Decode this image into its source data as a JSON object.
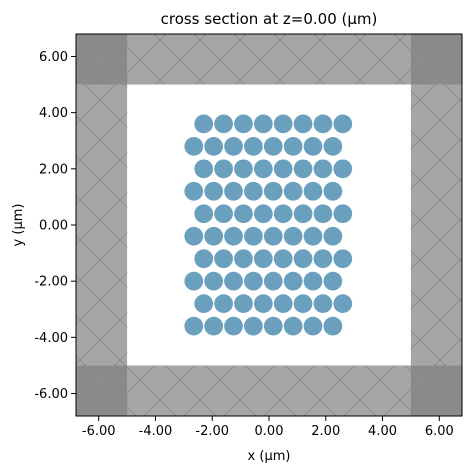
{
  "chart_data": {
    "type": "scatter",
    "title": "cross section at z=0.00 (μm)",
    "xlabel": "x (μm)",
    "ylabel": "y (μm)",
    "xlim": [
      -6.8,
      6.8
    ],
    "ylim": [
      -6.8,
      6.8
    ],
    "xticks": [
      -6,
      -4,
      -2,
      0,
      2,
      4,
      6
    ],
    "yticks": [
      -6,
      -4,
      -2,
      0,
      2,
      4,
      6
    ],
    "xtick_labels": [
      "-6.00",
      "-4.00",
      "-2.00",
      "0.00",
      "2.00",
      "4.00",
      "6.00"
    ],
    "ytick_labels": [
      "-6.00",
      "-4.00",
      "-2.00",
      "0.00",
      "2.00",
      "4.00",
      "6.00"
    ],
    "grid": false,
    "pml_boundary": 5.0,
    "background_region": {
      "x": [
        -5,
        5
      ],
      "y": [
        -5,
        5
      ],
      "color": "#ffffff"
    },
    "pml_color": "#a6a6a6",
    "pml_corner_color": "#8a8a8a",
    "hatch_color": "#8c8c8c",
    "cylinder_color": "#6a9fbd",
    "cylinder_radius": 0.33,
    "rows": [
      {
        "y": 3.6,
        "x": [
          -2.3,
          -1.6,
          -0.9,
          -0.2,
          0.5,
          1.2,
          1.9,
          2.6
        ]
      },
      {
        "y": 2.8,
        "x": [
          -2.65,
          -1.95,
          -1.25,
          -0.55,
          0.15,
          0.85,
          1.55,
          2.25
        ]
      },
      {
        "y": 2.0,
        "x": [
          -2.3,
          -1.6,
          -0.9,
          -0.2,
          0.5,
          1.2,
          1.9,
          2.6
        ]
      },
      {
        "y": 1.2,
        "x": [
          -2.65,
          -1.95,
          -1.25,
          -0.55,
          0.15,
          0.85,
          1.55,
          2.25
        ]
      },
      {
        "y": 0.4,
        "x": [
          -2.3,
          -1.6,
          -0.9,
          -0.2,
          0.5,
          1.2,
          1.9,
          2.6
        ]
      },
      {
        "y": -0.4,
        "x": [
          -2.65,
          -1.95,
          -1.25,
          -0.55,
          0.15,
          0.85,
          1.55,
          2.25
        ]
      },
      {
        "y": -1.2,
        "x": [
          -2.3,
          -1.6,
          -0.9,
          -0.2,
          0.5,
          1.2,
          1.9,
          2.6
        ]
      },
      {
        "y": -2.0,
        "x": [
          -2.65,
          -1.95,
          -1.25,
          -0.55,
          0.15,
          0.85,
          1.55,
          2.25
        ]
      },
      {
        "y": -2.8,
        "x": [
          -2.3,
          -1.6,
          -0.9,
          -0.2,
          0.5,
          1.2,
          1.9,
          2.6
        ]
      },
      {
        "y": -3.6,
        "x": [
          -2.65,
          -1.95,
          -1.25,
          -0.55,
          0.15,
          0.85,
          1.55,
          2.25
        ]
      }
    ]
  }
}
